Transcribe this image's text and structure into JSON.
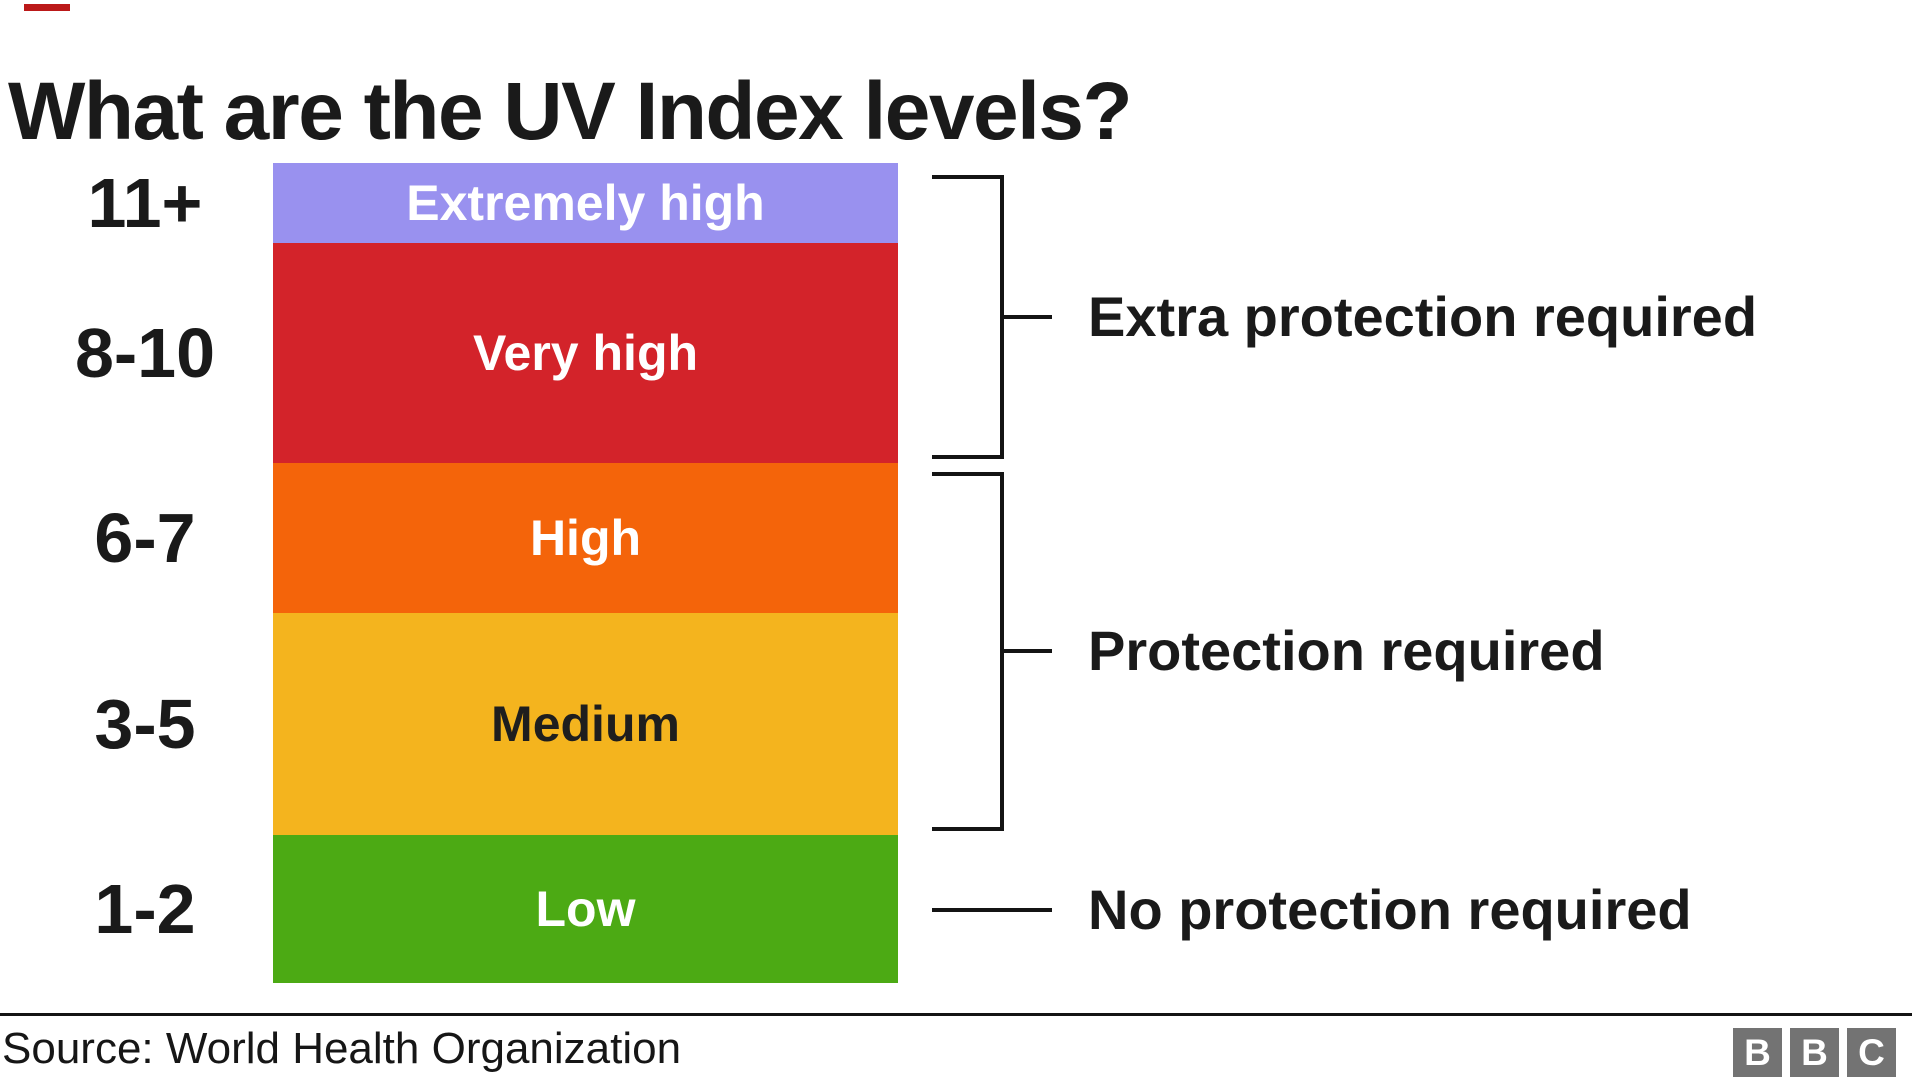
{
  "page": {
    "title": "What are the UV Index levels?"
  },
  "chart_data": {
    "type": "bar",
    "subtype": "stacked-range-scale",
    "title": "What are the UV Index levels?",
    "categories": [
      "11+",
      "8-10",
      "6-7",
      "3-5",
      "1-2"
    ],
    "bands": [
      {
        "range": "11+",
        "label": "Extremely high",
        "color": "#9991EF",
        "text_color": "#FFFFFF",
        "uv_units": 1,
        "advice": "Extra protection required"
      },
      {
        "range": "8-10",
        "label": "Very high",
        "color": "#D3232A",
        "text_color": "#FFFFFF",
        "uv_units": 3,
        "advice": "Extra protection required"
      },
      {
        "range": "6-7",
        "label": "High",
        "color": "#F4640A",
        "text_color": "#FFFFFF",
        "uv_units": 2,
        "advice": "Protection required"
      },
      {
        "range": "3-5",
        "label": "Medium",
        "color": "#F4B41E",
        "text_color": "#1E1E1E",
        "uv_units": 3,
        "advice": "Protection required"
      },
      {
        "range": "1-2",
        "label": "Low",
        "color": "#4CAA14",
        "text_color": "#FFFFFF",
        "uv_units": 2,
        "advice": "No protection required"
      }
    ],
    "annotations": [
      {
        "label": "Extra protection required",
        "bands": [
          "11+",
          "8-10"
        ]
      },
      {
        "label": "Protection required",
        "bands": [
          "6-7",
          "3-5"
        ]
      },
      {
        "label": "No protection required",
        "bands": [
          "1-2"
        ]
      }
    ],
    "legend_position": "none",
    "grid": false,
    "source": "World Health Organization"
  },
  "footer": {
    "source_text": "Source: World Health Organization",
    "bbc_logo": {
      "letters": [
        "B",
        "B",
        "C"
      ],
      "square_color": "#737373"
    }
  },
  "style": {
    "accent_red": "#BB1919",
    "text_color": "#1A1A1A",
    "line_color": "#141414",
    "background": "#FFFFFF"
  }
}
